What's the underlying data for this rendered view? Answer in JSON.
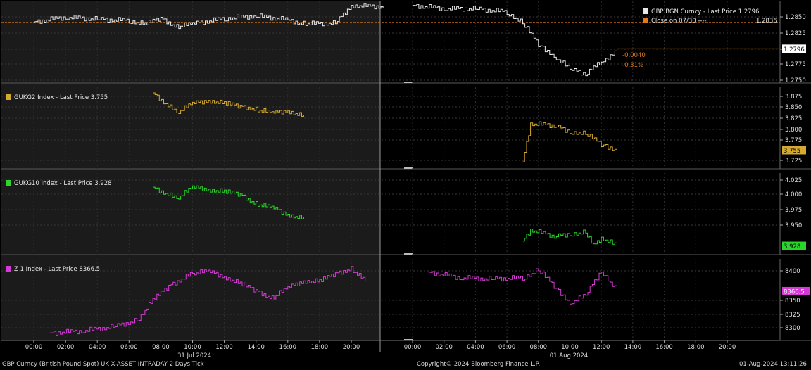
{
  "footer": {
    "left": "GBP Curncy (British Pound Spot) UK X-ASSET INTRADAY 2 Days  Tick",
    "center": "Copyright© 2024 Bloomberg Finance L.P.",
    "right": "01-Aug-2024 13:11:26"
  },
  "colors": {
    "gbp": "#e8e8e8",
    "close": "#e07b1a",
    "gukg2": "#d6aa2f",
    "gukg10": "#2bd62b",
    "z1": "#d63ad6"
  },
  "chart_data": [
    {
      "type": "line",
      "legend": [
        "GBP BGN Curncy - Last Price 1.2796",
        "Close on 07/30 ----"
      ],
      "close_value_label": "1.2836",
      "last_label": "1.2796",
      "change_labels": [
        "-0.0040",
        "-0.31%"
      ],
      "y_ticks": [
        "1.2850",
        "1.2825",
        "1.2800",
        "1.2775",
        "1.2750"
      ],
      "ylim": [
        1.2744,
        1.2868
      ],
      "close": 1.2836,
      "series": [
        {
          "name": "GBP BGN Curncy",
          "x": [
            "07-31 00:00",
            "07-31 02:00",
            "07-31 04:00",
            "07-31 06:00",
            "07-31 07:00",
            "07-31 08:00",
            "07-31 09:00",
            "07-31 10:00",
            "07-31 12:00",
            "07-31 14:00",
            "07-31 16:00",
            "07-31 17:00",
            "07-31 19:00",
            "07-31 20:00",
            "07-31 22:00",
            "08-01 00:00",
            "08-01 02:00",
            "08-01 04:00",
            "08-01 06:00",
            "08-01 07:00",
            "08-01 08:00",
            "08-01 09:00",
            "08-01 10:00",
            "08-01 11:00",
            "08-01 11:30",
            "08-01 12:00",
            "08-01 13:00"
          ],
          "values": [
            1.2837,
            1.2844,
            1.2841,
            1.2839,
            1.2833,
            1.2843,
            1.2829,
            1.2834,
            1.2842,
            1.2846,
            1.284,
            1.2834,
            1.2835,
            1.2862,
            1.286,
            1.2862,
            1.2857,
            1.2857,
            1.2852,
            1.2835,
            1.2803,
            1.2785,
            1.2765,
            1.2758,
            1.277,
            1.2773,
            1.2796
          ]
        }
      ]
    },
    {
      "type": "line",
      "legend": [
        "GUKG2 Index - Last Price 3.755"
      ],
      "last_label": "3.755",
      "y_ticks": [
        "3.875",
        "3.850",
        "3.825",
        "3.800",
        "3.775",
        "3.725"
      ],
      "ylim": [
        3.715,
        3.89
      ],
      "series": [
        {
          "name": "GUKG2 Index",
          "x": [
            "07-31 07:30",
            "07-31 09:00",
            "07-31 10:00",
            "07-31 11:00",
            "07-31 12:00",
            "07-31 13:00",
            "07-31 14:00",
            "07-31 15:00",
            "07-31 16:00",
            "07-31 17:00",
            "08-01 07:00",
            "08-01 07:30",
            "08-01 09:00",
            "08-01 10:00",
            "08-01 11:00",
            "08-01 12:00",
            "08-01 13:00"
          ],
          "values": [
            3.878,
            3.835,
            3.855,
            3.862,
            3.855,
            3.85,
            3.842,
            3.835,
            3.84,
            3.827,
            3.73,
            3.812,
            3.808,
            3.795,
            3.79,
            3.768,
            3.755
          ]
        }
      ]
    },
    {
      "type": "line",
      "legend": [
        "GUKG10 Index - Last Price 3.928"
      ],
      "last_label": "3.928",
      "y_ticks": [
        "4.025",
        "4.000",
        "3.975",
        "3.950"
      ],
      "ylim": [
        3.915,
        4.036
      ],
      "series": [
        {
          "name": "GUKG10 Index",
          "x": [
            "07-31 07:30",
            "07-31 09:00",
            "07-31 10:00",
            "07-31 11:00",
            "07-31 12:00",
            "07-31 13:00",
            "07-31 14:00",
            "07-31 15:00",
            "07-31 16:00",
            "07-31 17:00",
            "08-01 07:00",
            "08-01 07:30",
            "08-01 09:00",
            "08-01 10:00",
            "08-01 11:00",
            "08-01 11:30",
            "08-01 12:00",
            "08-01 13:00"
          ],
          "values": [
            4.015,
            3.998,
            4.015,
            4.012,
            4.008,
            4.005,
            3.99,
            3.985,
            3.975,
            3.968,
            3.935,
            3.952,
            3.942,
            3.946,
            3.948,
            3.928,
            3.94,
            3.928
          ]
        }
      ]
    },
    {
      "type": "line",
      "legend": [
        "Z 1 Index - Last Price 8366.5"
      ],
      "last_label": "8366.5",
      "y_ticks": [
        "8400",
        "8350",
        "8325",
        "8300"
      ],
      "ylim": [
        8288,
        8418
      ],
      "series": [
        {
          "name": "Z 1 Index",
          "x": [
            "07-31 01:00",
            "07-31 03:00",
            "07-31 05:00",
            "07-31 06:30",
            "07-31 07:30",
            "07-31 08:30",
            "07-31 10:00",
            "07-31 11:00",
            "07-31 12:00",
            "07-31 13:00",
            "07-31 14:00",
            "07-31 15:00",
            "07-31 16:00",
            "07-31 17:00",
            "07-31 18:00",
            "07-31 19:00",
            "07-31 20:00",
            "07-31 21:00",
            "08-01 01:00",
            "08-01 03:00",
            "08-01 05:00",
            "08-01 07:00",
            "08-01 08:00",
            "08-01 09:00",
            "08-01 10:00",
            "08-01 11:00",
            "08-01 12:00",
            "08-01 13:00"
          ],
          "values": [
            8300,
            8303,
            8310,
            8320,
            8352,
            8375,
            8395,
            8398,
            8390,
            8378,
            8368,
            8355,
            8372,
            8383,
            8382,
            8395,
            8402,
            8380,
            8397,
            8388,
            8386,
            8388,
            8400,
            8375,
            8348,
            8360,
            8400,
            8366.5
          ]
        }
      ]
    }
  ],
  "x_axis": {
    "ticks": [
      "00:00",
      "02:00",
      "04:00",
      "06:00",
      "08:00",
      "10:00",
      "12:00",
      "14:00",
      "16:00",
      "18:00",
      "20:00",
      "00:00",
      "02:00",
      "04:00",
      "06:00",
      "08:00",
      "10:00",
      "12:00",
      "14:00",
      "16:00",
      "18:00",
      "20:00"
    ],
    "dates": [
      "31 Jul 2024",
      "01 Aug 2024"
    ]
  }
}
